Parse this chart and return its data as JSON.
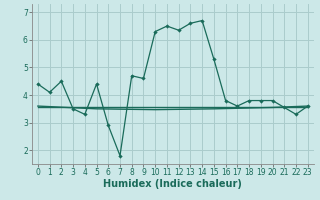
{
  "title": "",
  "xlabel": "Humidex (Indice chaleur)",
  "bg_color": "#cce8e8",
  "grid_color": "#aacccc",
  "line_color": "#1a6b5a",
  "line1_x": [
    0,
    1,
    2,
    3,
    4,
    5,
    6,
    7,
    8,
    9,
    10,
    11,
    12,
    13,
    14,
    15,
    16,
    17,
    18,
    19,
    20,
    21,
    22,
    23
  ],
  "line1_y": [
    4.4,
    4.1,
    4.5,
    3.5,
    3.3,
    4.4,
    2.9,
    1.8,
    4.7,
    4.6,
    6.3,
    6.5,
    6.35,
    6.6,
    6.7,
    5.3,
    3.8,
    3.6,
    3.8,
    3.8,
    3.8,
    3.55,
    3.3,
    3.6
  ],
  "line2_x": [
    0,
    5,
    10,
    15,
    20,
    23
  ],
  "line2_y": [
    3.6,
    3.5,
    3.47,
    3.5,
    3.55,
    3.6
  ],
  "line3_x": [
    0,
    23
  ],
  "line3_y": [
    3.58,
    3.58
  ],
  "ylim": [
    1.5,
    7.3
  ],
  "xlim": [
    -0.5,
    23.5
  ],
  "yticks": [
    2,
    3,
    4,
    5,
    6,
    7
  ],
  "xticks": [
    0,
    1,
    2,
    3,
    4,
    5,
    6,
    7,
    8,
    9,
    10,
    11,
    12,
    13,
    14,
    15,
    16,
    17,
    18,
    19,
    20,
    21,
    22,
    23
  ],
  "tick_fontsize": 5.5,
  "xlabel_fontsize": 7.0,
  "xlabel_fontweight": "bold"
}
